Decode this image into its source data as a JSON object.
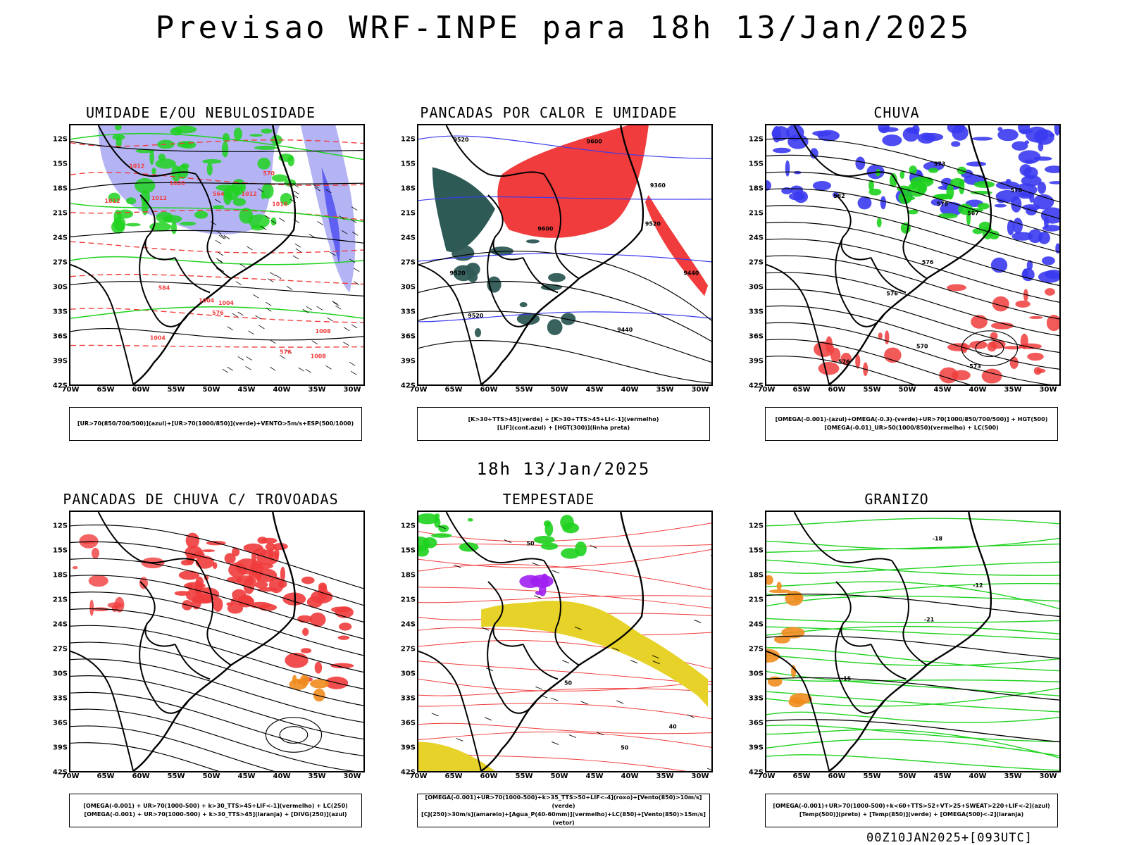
{
  "page": {
    "title": "Previsao WRF-INPE  para 18h 13/Jan/2025",
    "mid_title": "18h 13/Jan/2025",
    "footer": "00Z10JAN2025+[093UTC]"
  },
  "axes": {
    "lat_labels": [
      "12S",
      "15S",
      "18S",
      "21S",
      "24S",
      "27S",
      "30S",
      "33S",
      "36S",
      "39S",
      "42S"
    ],
    "lon_labels": [
      "70W",
      "65W",
      "60W",
      "55W",
      "50W",
      "45W",
      "40W",
      "35W",
      "30W"
    ]
  },
  "colors": {
    "red": "#f03c3c",
    "green": "#1ed21e",
    "blue": "#3a3af0",
    "lavender": "#b4b4f5",
    "darkteal": "#2e5a56",
    "yellow": "#e6d228",
    "orange": "#f08c1e",
    "purple": "#a020f0"
  },
  "panels": [
    {
      "title": "UMIDADE E/OU NEBULOSIDADE",
      "legend": [
        "[UR>70(850/700/500)](azul)+[UR>70(1000/850)](verde)+VENTO>5m/s+ESP(500/1000)"
      ],
      "map_labels": [
        "1012",
        "1004",
        "1004",
        "1008",
        "1012",
        "1012",
        "1016",
        "1020",
        "1004",
        "1008",
        "1012",
        "576",
        "570",
        "584",
        "576",
        "564"
      ]
    },
    {
      "title": "PANCADAS POR CALOR E UMIDADE",
      "legend": [
        "[K>30+TTS>45](verde) + [K>30+TTS>45+LI<-1](vermelho)",
        "[LIF](cont.azul) + [HGT(300)](linha preta)"
      ],
      "map_labels": [
        "9600",
        "9520",
        "9440",
        "9520",
        "9360",
        "9440",
        "9520",
        "9600",
        "9520"
      ]
    },
    {
      "title": "CHUVA",
      "legend": [
        "[OMEGA(-0.001)-(azul)+OMEGA(-0.3)-(verde)+UR>70(1000/850/700/500)] + HGT(500)",
        "[OMEGA(-0.01)_UR>50(1000/850)(vermelho) + LC(500)"
      ],
      "map_labels": [
        "576",
        "582",
        "576",
        "573",
        "570",
        "567",
        "576",
        "573",
        "570",
        "579"
      ]
    },
    {
      "title": "PANCADAS DE CHUVA C/ TROVOADAS",
      "legend": [
        "[OMEGA(-0.001) + UR>70(1000-500) + k>30_TTS>45+LIF<-1](vermelho) + LC(250)",
        "[OMEGA(-0.001) + UR>70(1000-500) + k>30_TTS>45](laranja) + [DIVG(250)](azul)"
      ],
      "map_labels": []
    },
    {
      "title": "TEMPESTADE",
      "legend": [
        "[OMEGA(-0.001)+UR>70(1000-500)+k>35_TTS>50+LIF<-4](roxo)+[Vento(850)>10m/s](verde)",
        "[CJ(250)>30m/s](amarelo)+[Agua_P(40-60mm)](vermelho)+LC(850)+[Vento(850)>15m/s](vetor)"
      ],
      "map_labels": [
        "50",
        "40",
        "50",
        "50"
      ]
    },
    {
      "title": "GRANIZO",
      "legend": [
        "[OMEGA(-0.001)+UR>70(1000-500)+k<60+TTS>52+VT>25+SWEAT>220+LIF<-2](azul)",
        "[Temp(500)](preto) + [Temp(850)](verde) + [OMEGA(500)<-2](laranja)"
      ],
      "map_labels": [
        "-12",
        "-15",
        "-18",
        "-21"
      ]
    }
  ]
}
